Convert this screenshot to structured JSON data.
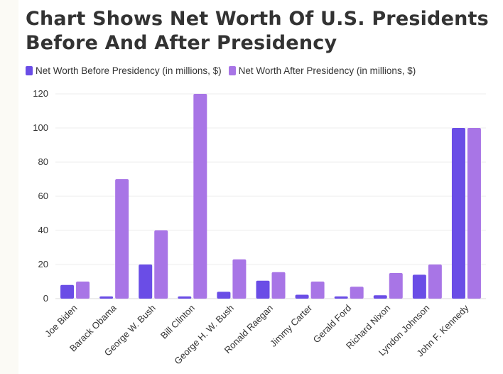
{
  "chart_data": {
    "type": "bar",
    "title": "Chart Shows Net Worth Of U.S. Presidents Before And After Presidency",
    "title_line1": "Chart Shows Net Worth Of U.S. Presidents",
    "title_line2": "Before And After Presidency",
    "categories": [
      "Joe Biden",
      "Barack Obama",
      "George W. Bush",
      "Bill Clinton",
      "George H. W. Bush",
      "Ronald Raegan",
      "Jimmy Carter",
      "Gerald Ford",
      "Richard Nixon",
      "Lyndon Johnson",
      "John F. Kennedy"
    ],
    "series": [
      {
        "name": "Net Worth Before Presidency (in millions, $)",
        "color": "#6a4de6",
        "values": [
          8,
          1.3,
          20,
          1.3,
          4,
          10.5,
          2.3,
          1.3,
          2,
          14,
          100
        ]
      },
      {
        "name": "Net Worth After Presidency (in millions, $)",
        "color": "#a875e6",
        "values": [
          10,
          70,
          40,
          120,
          23,
          15.5,
          10,
          7,
          15,
          20,
          100
        ]
      }
    ],
    "xlabel": "",
    "ylabel": "",
    "ylim": [
      0,
      120
    ],
    "yticks": [
      0,
      20,
      40,
      60,
      80,
      100,
      120
    ],
    "grid": true,
    "legend": "top-left"
  }
}
